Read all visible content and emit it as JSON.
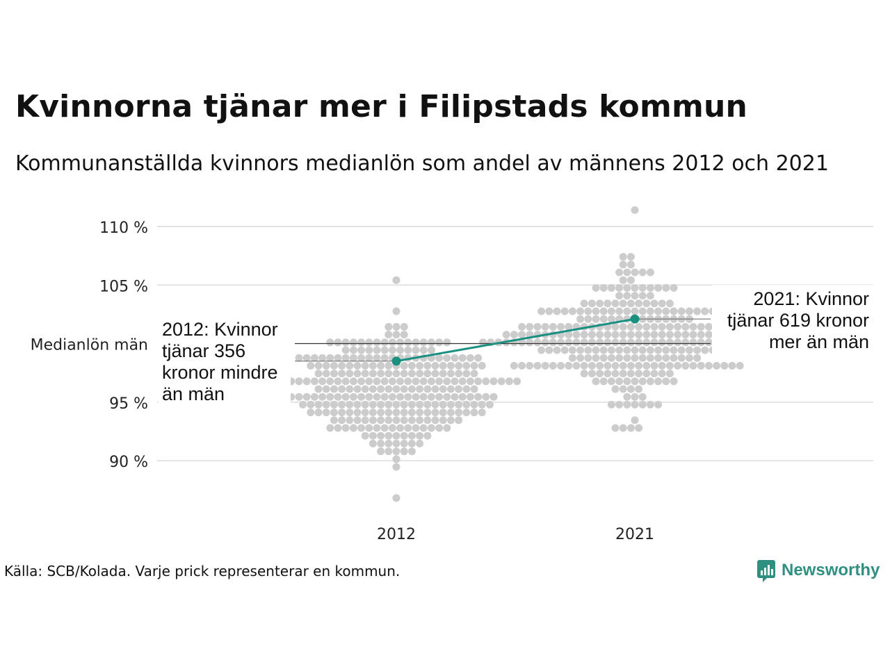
{
  "header": {
    "title": "Kvinnorna tjänar mer i Filipstads kommun",
    "subtitle": "Kommunanställda kvinnors medianlön som andel av männens 2012 och 2021"
  },
  "footer": {
    "source": "Källa: SCB/Kolada. Varje prick representerar en kommun.",
    "brand": "Newsworthy"
  },
  "colors": {
    "highlight": "#1a9080",
    "dots": "#cccccc",
    "grid": "#e3e3e3",
    "reference": "#333333",
    "brand": "#2f8f80"
  },
  "chart_data": {
    "type": "scatter",
    "subtype": "beeswarm",
    "title": "Kvinnorna tjänar mer i Filipstads kommun",
    "subtitle": "Kommunanställda kvinnors medianlön som andel av männens 2012 och 2021",
    "categories": [
      "2012",
      "2021"
    ],
    "ylim": [
      86,
      111.5
    ],
    "y_ticks": [
      {
        "value": 90,
        "label": "90 %"
      },
      {
        "value": 95,
        "label": "95 %"
      },
      {
        "value": 105,
        "label": "105 %"
      },
      {
        "value": 110,
        "label": "110 %"
      }
    ],
    "reference_line": {
      "value": 100,
      "label": "Medianlön män"
    },
    "grid": true,
    "distributions": [
      {
        "category": "2012",
        "approx_count": 290,
        "median": 96,
        "min": 86.5,
        "max": 105.2
      },
      {
        "category": "2021",
        "approx_count": 290,
        "median": 100.5,
        "min": 92.5,
        "max": 111.2
      }
    ],
    "highlight_series": {
      "name": "Filipstad",
      "values": [
        {
          "x": "2012",
          "y": 98.5
        },
        {
          "x": "2021",
          "y": 102.1
        }
      ]
    },
    "annotations": [
      {
        "x": "2012",
        "lines": [
          "2012: Kvinnor",
          "tjänar 356",
          "kronor mindre",
          "än män"
        ]
      },
      {
        "x": "2021",
        "lines": [
          "2021: Kvinnor",
          "tjänar 619 kronor",
          "mer än män"
        ]
      }
    ]
  }
}
